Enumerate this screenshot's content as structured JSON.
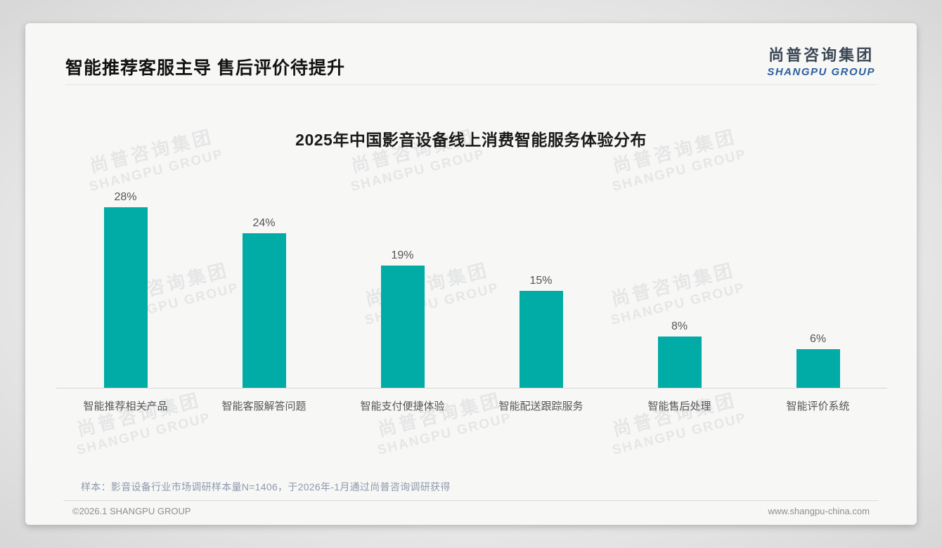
{
  "page": {
    "title": "智能推荐客服主导 售后评价待提升"
  },
  "logo": {
    "cn": "尚普咨询集团",
    "en": "SHANGPU GROUP"
  },
  "watermark": {
    "cn": "尚普咨询集团",
    "en": "SHANGPU GROUP"
  },
  "chart_data": {
    "type": "bar",
    "title": "2025年中国影音设备线上消费智能服务体验分布",
    "categories": [
      "智能推荐相关产品",
      "智能客服解答问题",
      "智能支付便捷体验",
      "智能配送跟踪服务",
      "智能售后处理",
      "智能评价系统"
    ],
    "values": [
      28,
      24,
      19,
      15,
      8,
      6
    ],
    "value_labels": [
      "28%",
      "24%",
      "19%",
      "15%",
      "8%",
      "6%"
    ],
    "unit": "percent",
    "bar_color": "#00ACA5",
    "ylim": [
      0,
      30
    ],
    "grid": false,
    "legend": false,
    "xlabel": "",
    "ylabel": ""
  },
  "footnote": "样本：影音设备行业市场调研样本量N=1406，于2026年-1月通过尚普咨询调研获得",
  "footer": {
    "left": "©2026.1 SHANGPU GROUP",
    "right": "www.shangpu-china.com"
  }
}
